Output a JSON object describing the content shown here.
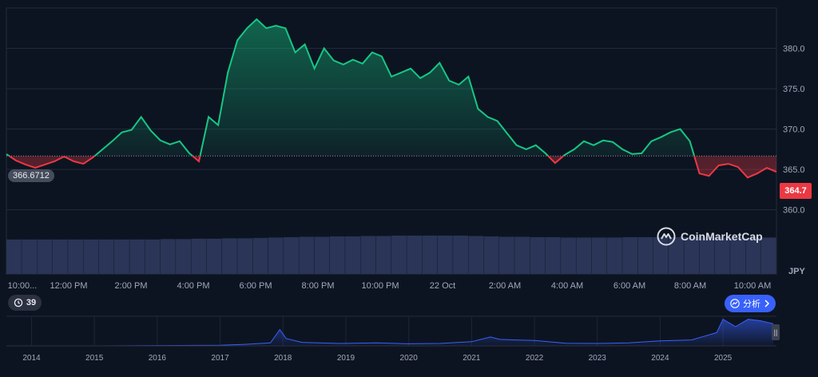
{
  "chart_data": [
    {
      "type": "line",
      "title": "",
      "ylabel": "",
      "unit": "JPY",
      "ylim": [
        357.0,
        385.0
      ],
      "y_ticks": [
        "360.0",
        "365.0",
        "370.0",
        "375.0",
        "380.0"
      ],
      "x_ticks": [
        "10:00...",
        "12:00 PM",
        "2:00 PM",
        "4:00 PM",
        "6:00 PM",
        "8:00 PM",
        "10:00 PM",
        "22 Oct",
        "2:00 AM",
        "4:00 AM",
        "6:00 AM",
        "8:00 AM",
        "10:00 AM"
      ],
      "baseline": 366.6712,
      "baseline_label": "366.6712",
      "current_price": 364.7,
      "current_label": "364.7",
      "x_hours": [
        0,
        0.3,
        0.6,
        0.9,
        1.2,
        1.5,
        1.8,
        2.1,
        2.4,
        2.7,
        3.0,
        3.3,
        3.6,
        3.9,
        4.2,
        4.5,
        4.8,
        5.1,
        5.4,
        5.7,
        6.0,
        6.3,
        6.6,
        6.9,
        7.2,
        7.5,
        7.8,
        8.1,
        8.4,
        8.7,
        9.0,
        9.3,
        9.6,
        9.9,
        10.2,
        10.5,
        10.8,
        11.1,
        11.4,
        11.7,
        12.0,
        12.3,
        12.6,
        12.9,
        13.2,
        13.5,
        13.8,
        14.1,
        14.4,
        14.7,
        15.0,
        15.3,
        15.6,
        15.9,
        16.2,
        16.5,
        16.8,
        17.1,
        17.4,
        17.7,
        18.0,
        18.3,
        18.6,
        18.9,
        19.2,
        19.5,
        19.8,
        20.1,
        20.4,
        20.7,
        21.0,
        21.3,
        21.6,
        21.9,
        22.2,
        22.5,
        22.8,
        23.1,
        23.4,
        23.7,
        24.0
      ],
      "series": [
        {
          "values": [
            366.9,
            366.1,
            365.6,
            365.2,
            365.6,
            366.0,
            366.6,
            366.0,
            365.7,
            366.5,
            367.5,
            368.5,
            369.6,
            369.9,
            371.5,
            369.8,
            368.6,
            368.1,
            368.5,
            367.0,
            366.0,
            371.5,
            370.5,
            377.0,
            381.0,
            382.5,
            383.6,
            382.5,
            382.8,
            382.5,
            379.5,
            380.5,
            377.5,
            380.0,
            378.5,
            378.0,
            378.6,
            378.1,
            379.5,
            379.0,
            376.5,
            377.0,
            377.5,
            376.3,
            377.0,
            378.2,
            376.0,
            375.5,
            376.5,
            372.5,
            371.5,
            371.0,
            369.5,
            368.0,
            367.5,
            368.0,
            367.0,
            365.8,
            366.8,
            367.5,
            368.5,
            368.0,
            368.6,
            368.4,
            367.5,
            366.9,
            367.0,
            368.5,
            369.0,
            369.6,
            370.0,
            368.5,
            364.5,
            364.2,
            365.5,
            365.7,
            365.3,
            364.0,
            364.5,
            365.2,
            364.7
          ]
        }
      ],
      "legend": "none",
      "grid": true
    },
    {
      "type": "bar",
      "title": "",
      "ylabel": "",
      "description_values": "volume",
      "values": [
        0.9,
        0.9,
        0.9,
        0.9,
        0.9,
        0.9,
        0.9,
        0.9,
        0.9,
        0.9,
        0.91,
        0.91,
        0.92,
        0.92,
        0.93,
        0.93,
        0.94,
        0.95,
        0.96,
        0.97,
        0.97,
        0.98,
        0.98,
        0.99,
        0.99,
        1.0,
        1.0,
        1.0,
        1.0,
        1.0,
        0.99,
        0.98,
        0.97,
        0.97,
        0.96,
        0.96,
        0.95,
        0.95,
        0.95,
        0.95,
        0.96,
        0.96,
        0.96,
        0.96,
        0.96,
        0.96,
        0.95,
        0.95,
        0.95,
        0.95
      ]
    },
    {
      "type": "area",
      "title": "",
      "x_ticks": [
        "2014",
        "2015",
        "2016",
        "2017",
        "2018",
        "2019",
        "2020",
        "2021",
        "2022",
        "2023",
        "2024",
        "2025"
      ],
      "x": [
        2013.6,
        2014.0,
        2015.0,
        2016.0,
        2017.0,
        2017.4,
        2017.8,
        2017.95,
        2018.05,
        2018.3,
        2018.9,
        2019.5,
        2020.0,
        2020.5,
        2021.0,
        2021.3,
        2021.45,
        2021.7,
        2022.0,
        2022.5,
        2023.0,
        2023.5,
        2024.0,
        2024.5,
        2024.9,
        2025.0,
        2025.2,
        2025.4,
        2025.6,
        2025.8
      ],
      "values": [
        0.0,
        0.0,
        0.0,
        0.01,
        0.02,
        0.05,
        0.1,
        0.55,
        0.25,
        0.12,
        0.08,
        0.1,
        0.07,
        0.08,
        0.14,
        0.3,
        0.22,
        0.2,
        0.18,
        0.09,
        0.08,
        0.1,
        0.17,
        0.2,
        0.45,
        0.9,
        0.65,
        0.9,
        0.85,
        0.75
      ]
    }
  ],
  "watermark": "CoinMarketCap",
  "history_count": "39",
  "analyze_label": "分析",
  "colors": {
    "up": "#16c784",
    "down": "#ea3943",
    "volume": "#2a3557",
    "nav_line": "#3861fb",
    "background": "#0d1421"
  }
}
